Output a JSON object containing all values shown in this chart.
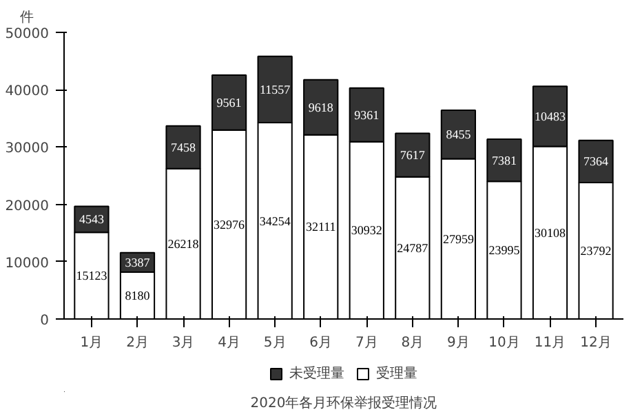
{
  "chart_data": {
    "type": "bar",
    "stacked": true,
    "title": "2020年各月环保举报受理情况",
    "ylabel": "件",
    "categories": [
      "1月",
      "2月",
      "3月",
      "4月",
      "5月",
      "6月",
      "7月",
      "8月",
      "9月",
      "10月",
      "11月",
      "12月"
    ],
    "series": [
      {
        "name": "受理量",
        "color": "#ffffff",
        "values": [
          15123,
          8180,
          26218,
          32976,
          34254,
          32111,
          30932,
          24787,
          27959,
          23995,
          30108,
          23792
        ]
      },
      {
        "name": "未受理量",
        "color": "#333333",
        "values": [
          4543,
          3387,
          7458,
          9561,
          11557,
          9618,
          9361,
          7617,
          8455,
          7381,
          10483,
          7364
        ]
      }
    ],
    "ylim": [
      0,
      50000
    ],
    "yticks": [
      0,
      10000,
      20000,
      30000,
      40000,
      50000
    ],
    "grid": false,
    "legend": "bottom",
    "data_labels": true
  }
}
